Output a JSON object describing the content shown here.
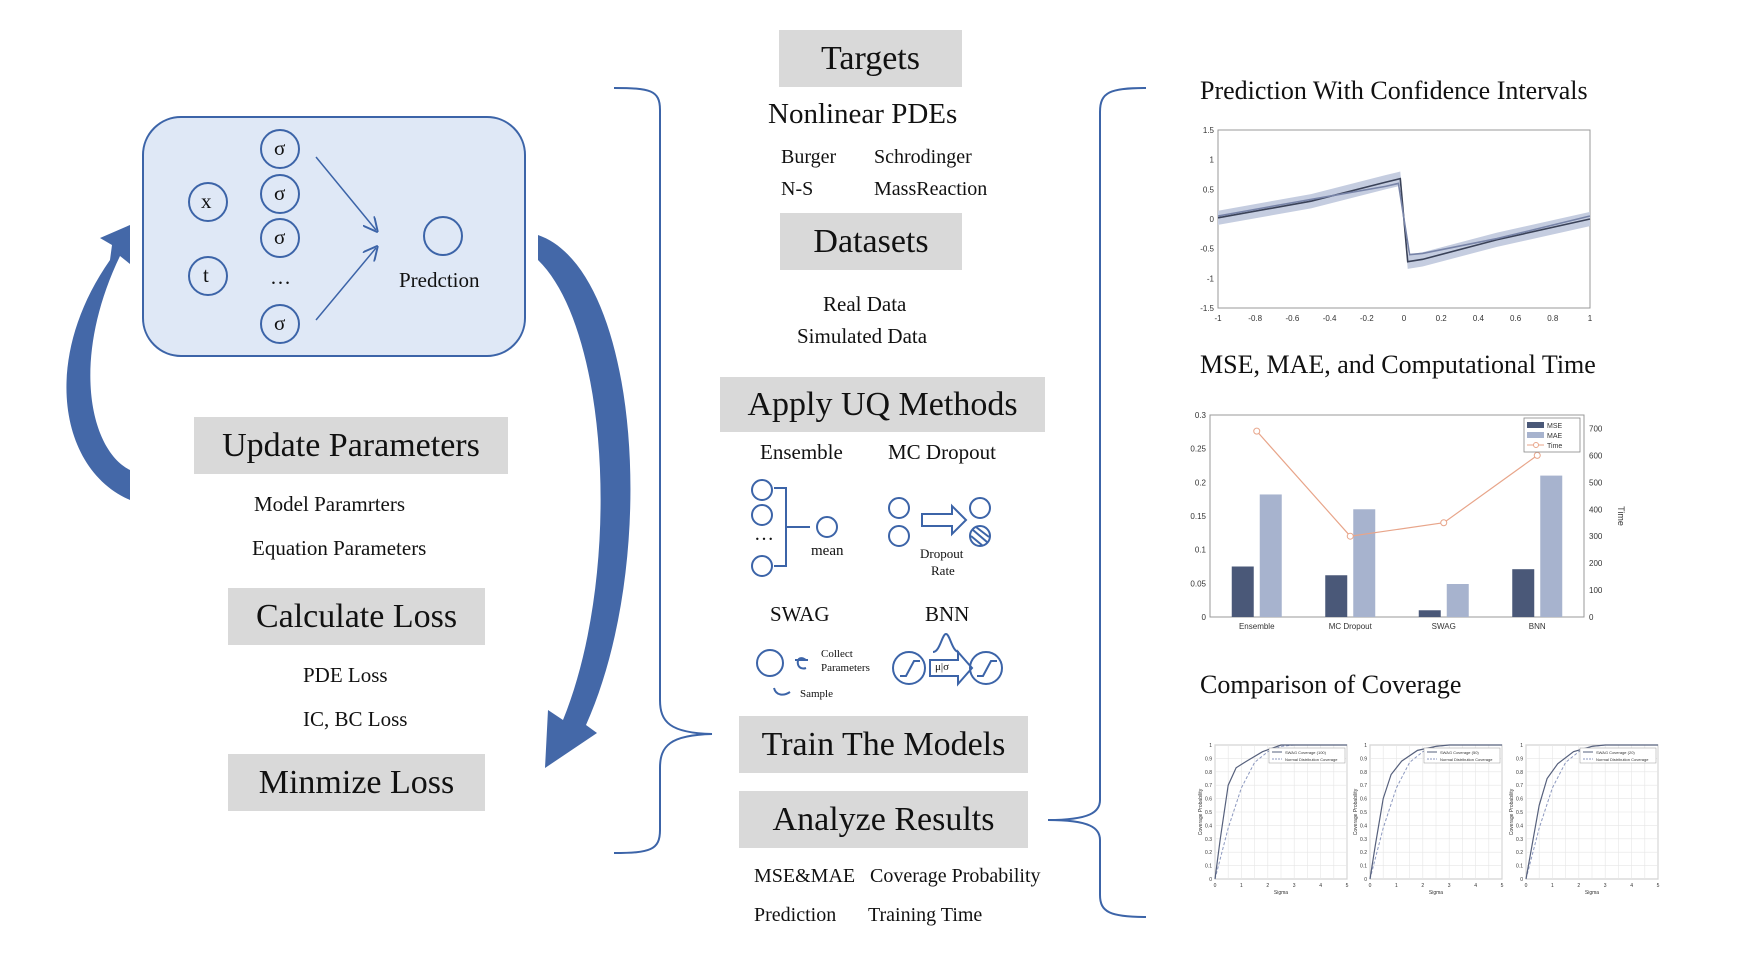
{
  "network": {
    "inputs": [
      "x",
      "t"
    ],
    "hidden": [
      "σ",
      "σ",
      "σ",
      "…",
      "σ"
    ],
    "output_label": "Predction"
  },
  "loop": {
    "update_parameters": "Update Parameters",
    "model_params": "Model Paramrters",
    "equation_params": "Equation Parameters",
    "calculate_loss": "Calculate Loss",
    "pde_loss": "PDE Loss",
    "icbc_loss": "IC, BC Loss",
    "minimize_loss": "Minmize Loss"
  },
  "middle": {
    "targets": "Targets",
    "nonlinear_pdes": "Nonlinear PDEs",
    "pdes": [
      "Burger",
      "Schrodinger",
      "N-S",
      "MassReaction"
    ],
    "datasets": "Datasets",
    "data_items": [
      "Real Data",
      "Simulated Data"
    ],
    "apply_uq": "Apply UQ Methods",
    "methods": {
      "ensemble": "Ensemble",
      "mc_dropout": "MC Dropout",
      "swag": "SWAG",
      "bnn": "BNN"
    },
    "ensemble_dots": "…",
    "ensemble_mean": "mean",
    "dropout_rate_1": "Dropout",
    "dropout_rate_2": "Rate",
    "swag_collect_1": "Collect",
    "swag_collect_2": "Parameters",
    "swag_sample": "Sample",
    "bnn_label": "μ|σ",
    "train_models": "Train The Models",
    "analyze_results": "Analyze Results",
    "metrics": [
      "MSE&MAE",
      "Coverage Probability",
      "Prediction",
      "Training Time"
    ]
  },
  "right": {
    "title_prediction": "Prediction With Confidence Intervals",
    "title_mse": "MSE, MAE, and Computational Time",
    "title_coverage": "Comparison of Coverage"
  },
  "chart_data": [
    {
      "type": "line",
      "title": "",
      "xlabel": "",
      "ylabel": "",
      "xlim": [
        -1,
        1
      ],
      "ylim": [
        -1.5,
        1.5
      ],
      "xticks": [
        "-1",
        "-0.8",
        "-0.6",
        "-0.4",
        "-0.2",
        "0",
        "0.2",
        "0.4",
        "0.6",
        "0.8",
        "1"
      ],
      "yticks": [
        "-1.5",
        "-1",
        "-0.5",
        "0",
        "0.5",
        "1",
        "1.5"
      ],
      "series": [
        {
          "x": [
            -1,
            -0.5,
            -0.1,
            -0.02,
            0.02,
            0.1,
            0.5,
            1
          ],
          "y": [
            0.02,
            0.3,
            0.62,
            0.68,
            -0.72,
            -0.68,
            -0.35,
            0.0
          ]
        },
        {
          "x": [
            -1,
            -0.5,
            -0.1,
            -0.03,
            0.03,
            0.1,
            0.5,
            1
          ],
          "y": [
            0.05,
            0.33,
            0.55,
            0.6,
            -0.6,
            -0.58,
            -0.33,
            0.05
          ]
        }
      ],
      "band_halfwidth": 0.12,
      "grid": false
    },
    {
      "type": "bar",
      "title": "",
      "categories": [
        "Ensemble",
        "MC Dropout",
        "SWAG",
        "BNN"
      ],
      "series": [
        {
          "name": "MSE",
          "values": [
            0.075,
            0.062,
            0.01,
            0.071
          ],
          "color": "#4a5878"
        },
        {
          "name": "MAE",
          "values": [
            0.182,
            0.16,
            0.049,
            0.21
          ],
          "color": "#a7b3ce"
        },
        {
          "name": "Time",
          "values": [
            690,
            300,
            350,
            600
          ],
          "color": "#e8a58a",
          "axis": "right"
        }
      ],
      "ylim": [
        0,
        0.3
      ],
      "yticks": [
        "0",
        "0.05",
        "0.1",
        "0.15",
        "0.2",
        "0.25",
        "0.3"
      ],
      "y2lim": [
        0,
        750
      ],
      "y2ticks": [
        "0",
        "100",
        "200",
        "300",
        "400",
        "500",
        "600",
        "700"
      ],
      "y2label": "Time",
      "legend": "top-right"
    },
    {
      "type": "line",
      "title": "",
      "xlabel": "Sigma",
      "ylabel": "Coverage Probability",
      "xlim": [
        0,
        5
      ],
      "ylim": [
        0,
        1
      ],
      "xticks": [
        "0",
        "0.5",
        "1",
        "1.5",
        "2",
        "2.5",
        "3",
        "3.5",
        "4",
        "4.5",
        "5"
      ],
      "yticks": [
        "0",
        "0.1",
        "0.2",
        "0.3",
        "0.4",
        "0.5",
        "0.6",
        "0.7",
        "0.8",
        "0.9",
        "1"
      ],
      "panels": [
        {
          "legend": [
            "SWAG Coverage (100)",
            "Normal Distribution Coverage"
          ],
          "swag": {
            "x": [
              0,
              0.2,
              0.5,
              0.8,
              1.2,
              1.8,
              2.5,
              3,
              5
            ],
            "y": [
              0,
              0.3,
              0.7,
              0.83,
              0.88,
              0.95,
              1,
              1,
              1
            ]
          }
        },
        {
          "legend": [
            "SWAG Coverage (50)",
            "Normal Distribution Coverage"
          ],
          "swag": {
            "x": [
              0,
              0.2,
              0.5,
              0.8,
              1.2,
              1.8,
              2.5,
              3,
              5
            ],
            "y": [
              0,
              0.25,
              0.6,
              0.78,
              0.88,
              0.96,
              0.99,
              1,
              1
            ]
          }
        },
        {
          "legend": [
            "SWAG Coverage (20)",
            "Normal Distribution Coverage"
          ],
          "swag": {
            "x": [
              0,
              0.2,
              0.5,
              0.8,
              1.2,
              1.8,
              2.5,
              3,
              5
            ],
            "y": [
              0,
              0.22,
              0.55,
              0.75,
              0.86,
              0.95,
              0.99,
              1,
              1
            ]
          }
        }
      ],
      "normal": {
        "x": [
          0,
          0.5,
          1,
          1.5,
          2,
          2.5,
          3,
          5
        ],
        "y": [
          0,
          0.38,
          0.68,
          0.87,
          0.95,
          0.99,
          1,
          1
        ]
      }
    }
  ]
}
